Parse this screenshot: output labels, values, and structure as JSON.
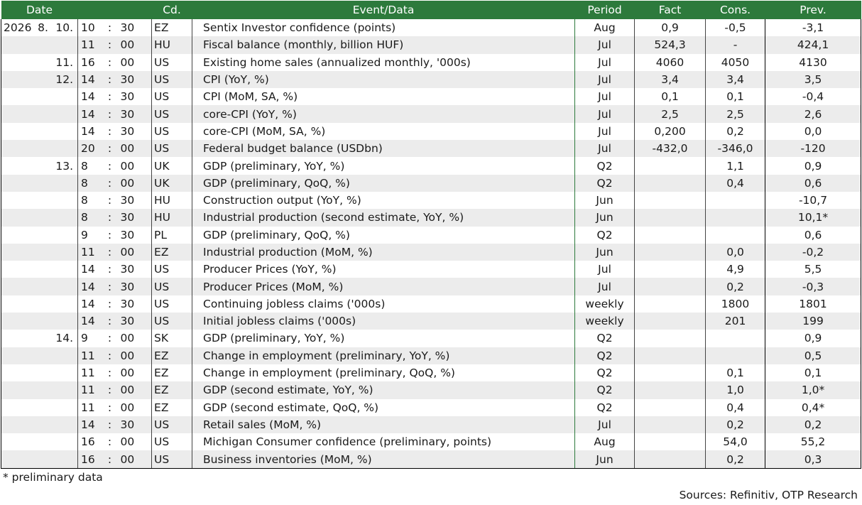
{
  "header": {
    "date": "Date",
    "code": "Cd.",
    "event": "Event/Data",
    "period": "Period",
    "fact": "Fact",
    "consensus": "Cons.",
    "previous": "Prev."
  },
  "rows": [
    {
      "year": "2026",
      "month": "8.",
      "day": "10.",
      "hour": "10",
      "minute": "30",
      "code": "EZ",
      "event": "Sentix Investor confidence (points)",
      "period": "Aug",
      "fact": "0,9",
      "cons": "-0,5",
      "prev": "-3,1"
    },
    {
      "year": "",
      "month": "",
      "day": "",
      "hour": "11",
      "minute": "00",
      "code": "HU",
      "event": "Fiscal balance (monthly, billion HUF)",
      "period": "Jul",
      "fact": "524,3",
      "cons": "-",
      "prev": "424,1"
    },
    {
      "year": "",
      "month": "",
      "day": "11.",
      "hour": "16",
      "minute": "00",
      "code": "US",
      "event": "Existing home sales (annualized monthly, '000s)",
      "period": "Jul",
      "fact": "4060",
      "cons": "4050",
      "prev": "4130"
    },
    {
      "year": "",
      "month": "",
      "day": "12.",
      "hour": "14",
      "minute": "30",
      "code": "US",
      "event": "CPI (YoY, %)",
      "period": "Jul",
      "fact": "3,4",
      "cons": "3,4",
      "prev": "3,5"
    },
    {
      "year": "",
      "month": "",
      "day": "",
      "hour": "14",
      "minute": "30",
      "code": "US",
      "event": "CPI (MoM, SA, %)",
      "period": "Jul",
      "fact": "0,1",
      "cons": "0,1",
      "prev": "-0,4"
    },
    {
      "year": "",
      "month": "",
      "day": "",
      "hour": "14",
      "minute": "30",
      "code": "US",
      "event": "core-CPI (YoY, %)",
      "period": "Jul",
      "fact": "2,5",
      "cons": "2,5",
      "prev": "2,6"
    },
    {
      "year": "",
      "month": "",
      "day": "",
      "hour": "14",
      "minute": "30",
      "code": "US",
      "event": "core-CPI (MoM, SA, %)",
      "period": "Jul",
      "fact": "0,200",
      "cons": "0,2",
      "prev": "0,0"
    },
    {
      "year": "",
      "month": "",
      "day": "",
      "hour": "20",
      "minute": "00",
      "code": "US",
      "event": "Federal budget balance (USDbn)",
      "period": "Jul",
      "fact": "-432,0",
      "cons": "-346,0",
      "prev": "-120"
    },
    {
      "year": "",
      "month": "",
      "day": "13.",
      "hour": "8",
      "minute": "00",
      "code": "UK",
      "event": "GDP (preliminary, YoY, %)",
      "period": "Q2",
      "fact": "",
      "cons": "1,1",
      "prev": "0,9"
    },
    {
      "year": "",
      "month": "",
      "day": "",
      "hour": "8",
      "minute": "00",
      "code": "UK",
      "event": "GDP (preliminary, QoQ, %)",
      "period": "Q2",
      "fact": "",
      "cons": "0,4",
      "prev": "0,6"
    },
    {
      "year": "",
      "month": "",
      "day": "",
      "hour": "8",
      "minute": "30",
      "code": "HU",
      "event": "Construction output (YoY, %)",
      "period": "Jun",
      "fact": "",
      "cons": "",
      "prev": "-10,7"
    },
    {
      "year": "",
      "month": "",
      "day": "",
      "hour": "8",
      "minute": "30",
      "code": "HU",
      "event": "Industrial production (second estimate, YoY, %)",
      "period": "Jun",
      "fact": "",
      "cons": "",
      "prev": "10,1*"
    },
    {
      "year": "",
      "month": "",
      "day": "",
      "hour": "9",
      "minute": "30",
      "code": "PL",
      "event": "GDP (preliminary, QoQ, %)",
      "period": "Q2",
      "fact": "",
      "cons": "",
      "prev": "0,6"
    },
    {
      "year": "",
      "month": "",
      "day": "",
      "hour": "11",
      "minute": "00",
      "code": "EZ",
      "event": "Industrial production (MoM, %)",
      "period": "Jun",
      "fact": "",
      "cons": "0,0",
      "prev": "-0,2"
    },
    {
      "year": "",
      "month": "",
      "day": "",
      "hour": "14",
      "minute": "30",
      "code": "US",
      "event": "Producer Prices (YoY, %)",
      "period": "Jul",
      "fact": "",
      "cons": "4,9",
      "prev": "5,5"
    },
    {
      "year": "",
      "month": "",
      "day": "",
      "hour": "14",
      "minute": "30",
      "code": "US",
      "event": "Producer Prices (MoM, %)",
      "period": "Jul",
      "fact": "",
      "cons": "0,2",
      "prev": "-0,3"
    },
    {
      "year": "",
      "month": "",
      "day": "",
      "hour": "14",
      "minute": "30",
      "code": "US",
      "event": "Continuing jobless claims ('000s)",
      "period": "weekly",
      "fact": "",
      "cons": "1800",
      "prev": "1801"
    },
    {
      "year": "",
      "month": "",
      "day": "",
      "hour": "14",
      "minute": "30",
      "code": "US",
      "event": "Initial jobless claims ('000s)",
      "period": "weekly",
      "fact": "",
      "cons": "201",
      "prev": "199"
    },
    {
      "year": "",
      "month": "",
      "day": "14.",
      "hour": "9",
      "minute": "00",
      "code": "SK",
      "event": "GDP (preliminary, YoY, %)",
      "period": "Q2",
      "fact": "",
      "cons": "",
      "prev": "0,9"
    },
    {
      "year": "",
      "month": "",
      "day": "",
      "hour": "11",
      "minute": "00",
      "code": "EZ",
      "event": "Change in employment (preliminary, YoY, %)",
      "period": "Q2",
      "fact": "",
      "cons": "",
      "prev": "0,5"
    },
    {
      "year": "",
      "month": "",
      "day": "",
      "hour": "11",
      "minute": "00",
      "code": "EZ",
      "event": "Change in employment (preliminary, QoQ, %)",
      "period": "Q2",
      "fact": "",
      "cons": "0,1",
      "prev": "0,1"
    },
    {
      "year": "",
      "month": "",
      "day": "",
      "hour": "11",
      "minute": "00",
      "code": "EZ",
      "event": "GDP (second estimate, YoY, %)",
      "period": "Q2",
      "fact": "",
      "cons": "1,0",
      "prev": "1,0*"
    },
    {
      "year": "",
      "month": "",
      "day": "",
      "hour": "11",
      "minute": "00",
      "code": "EZ",
      "event": "GDP (second estimate, QoQ, %)",
      "period": "Q2",
      "fact": "",
      "cons": "0,4",
      "prev": "0,4*"
    },
    {
      "year": "",
      "month": "",
      "day": "",
      "hour": "14",
      "minute": "30",
      "code": "US",
      "event": "Retail sales (MoM, %)",
      "period": "Jul",
      "fact": "",
      "cons": "0,2",
      "prev": "0,2"
    },
    {
      "year": "",
      "month": "",
      "day": "",
      "hour": "16",
      "minute": "00",
      "code": "US",
      "event": "Michigan Consumer confidence (preliminary, points)",
      "period": "Aug",
      "fact": "",
      "cons": "54,0",
      "prev": "55,2"
    },
    {
      "year": "",
      "month": "",
      "day": "",
      "hour": "16",
      "minute": "00",
      "code": "US",
      "event": "Business inventories (MoM, %)",
      "period": "Jun",
      "fact": "",
      "cons": "0,2",
      "prev": "0,3"
    }
  ],
  "footnote": "* preliminary data",
  "sources": "Sources: Refinitiv, OTP Research"
}
